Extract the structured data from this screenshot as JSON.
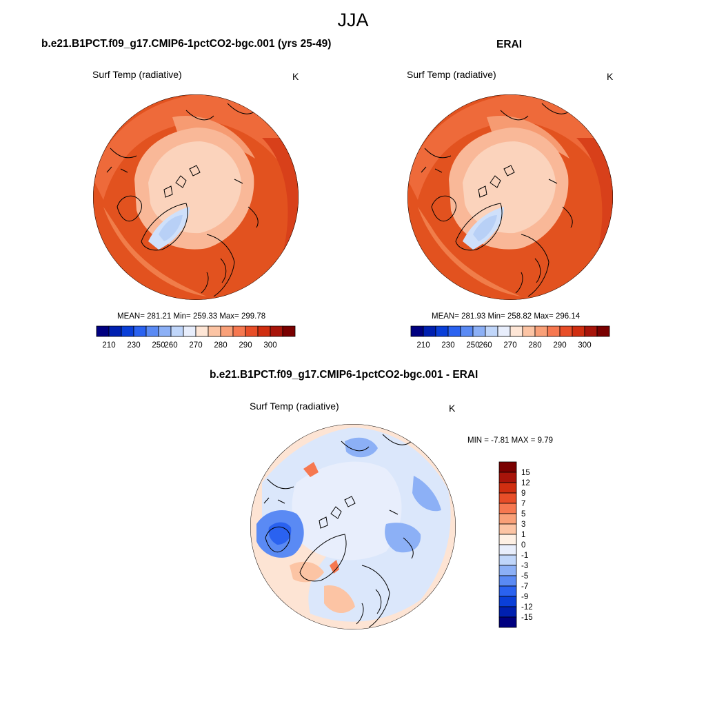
{
  "figure_title": "JJA",
  "panels": [
    {
      "title": "b.e21.B1PCT.f09_g17.CMIP6-1pctCO2-bgc.001 (yrs 25-49)",
      "variable": "Surf Temp (radiative)",
      "units": "K",
      "stats": "MEAN= 281.21  Min= 259.33  Max= 299.78",
      "colorbar_labels": [
        "210",
        "230",
        "250",
        "260",
        "270",
        "280",
        "290",
        "300"
      ]
    },
    {
      "title": "ERAI",
      "variable": "Surf Temp (radiative)",
      "units": "K",
      "stats": "MEAN= 281.93  Min= 258.82  Max= 296.14",
      "colorbar_labels": [
        "210",
        "230",
        "250",
        "260",
        "270",
        "280",
        "290",
        "300"
      ]
    },
    {
      "title": "b.e21.B1PCT.f09_g17.CMIP6-1pctCO2-bgc.001 - ERAI",
      "variable": "Surf Temp (radiative)",
      "units": "K",
      "stats": "MIN =  -7.81 MAX =   9.79",
      "colorbar_labels": [
        "15",
        "12",
        "9",
        "7",
        "5",
        "3",
        "1",
        "0",
        "-1",
        "-3",
        "-5",
        "-7",
        "-9",
        "-12",
        "-15"
      ]
    }
  ],
  "colors": {
    "abs_scale": [
      "#000080",
      "#0020b0",
      "#0a3fd8",
      "#2a62f0",
      "#5a8af4",
      "#8cb0f6",
      "#c0d6fa",
      "#e8eefc",
      "#fee6d6",
      "#fcc4a4",
      "#f9a078",
      "#f67850",
      "#e84e28",
      "#d02e10",
      "#a8140a",
      "#7a0000"
    ],
    "diff_scale": [
      "#000080",
      "#0020b0",
      "#0a3fd8",
      "#2a62f0",
      "#5a8af4",
      "#8cb0f6",
      "#c0d6fa",
      "#e8eefc",
      "#fef0e4",
      "#fcc4a4",
      "#f9a078",
      "#f67850",
      "#e84e28",
      "#d02e10",
      "#a8140a",
      "#7a0000"
    ]
  }
}
